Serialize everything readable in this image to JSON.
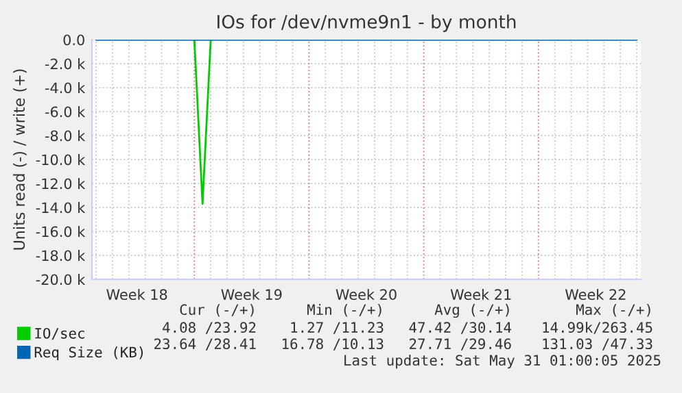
{
  "chart_data": {
    "type": "line",
    "title": "IOs for /dev/nvme9n1 - by month",
    "ylabel": "Units read (-) / write (+)",
    "categories": [
      null,
      null,
      null,
      null,
      null,
      "Week 18",
      null,
      null,
      null,
      null,
      null,
      null,
      null,
      null,
      null,
      null,
      null,
      null,
      null,
      "Week 19",
      null,
      null,
      null,
      null,
      null,
      null,
      null,
      null,
      null,
      null,
      null,
      null,
      null,
      "Week 20",
      null,
      null,
      null,
      null,
      null,
      null,
      null,
      null,
      null,
      null,
      null,
      null,
      null,
      "Week 21",
      null,
      null,
      null,
      null,
      null,
      null,
      null,
      null,
      null,
      null,
      null,
      null,
      null,
      "Week 22",
      null,
      null,
      null,
      null,
      null
    ],
    "ylim": [
      -20000,
      0
    ],
    "yticks": [
      {
        "value": -20000,
        "label": "-20.0 k"
      },
      {
        "value": -18000,
        "label": "-18.0 k"
      },
      {
        "value": -16000,
        "label": "-16.0 k"
      },
      {
        "value": -14000,
        "label": "-14.0 k"
      },
      {
        "value": -12000,
        "label": "-12.0 k"
      },
      {
        "value": -10000,
        "label": "-10.0 k"
      },
      {
        "value": -8000,
        "label": "-8.0 k"
      },
      {
        "value": -6000,
        "label": "-6.0 k"
      },
      {
        "value": -4000,
        "label": "-4.0 k"
      },
      {
        "value": -2000,
        "label": "-2.0 k"
      },
      {
        "value": 0,
        "label": "0.0"
      }
    ],
    "grid": true,
    "legend": "bottom left",
    "marker": "none",
    "line_style": "solid",
    "series": [
      {
        "name": "IO/sec",
        "color": "#00cc00",
        "values": [
          null,
          null,
          null,
          null,
          null,
          null,
          null,
          null,
          null,
          null,
          null,
          null,
          0,
          -13700,
          0,
          null,
          null,
          null,
          null,
          null,
          null,
          null,
          null,
          null,
          null,
          null,
          null,
          null,
          null,
          null,
          null,
          null,
          null,
          null,
          null,
          null,
          null,
          null,
          null,
          null,
          null,
          null,
          null,
          null,
          null,
          null,
          null,
          null,
          null,
          null,
          null,
          null,
          null,
          null,
          null,
          null,
          null,
          null,
          null,
          null,
          null,
          null,
          null,
          null,
          null,
          null,
          null
        ]
      },
      {
        "name": "Req Size (KB)",
        "color": "#0066b3",
        "values": [
          0,
          0,
          0,
          0,
          0,
          0,
          0,
          0,
          0,
          0,
          0,
          0,
          0,
          0,
          0,
          0,
          0,
          0,
          0,
          0,
          0,
          0,
          0,
          0,
          0,
          0,
          0,
          0,
          0,
          0,
          0,
          0,
          0,
          0,
          0,
          0,
          0,
          0,
          0,
          0,
          0,
          0,
          0,
          0,
          0,
          0,
          0,
          0,
          0,
          0,
          0,
          0,
          0,
          0,
          0,
          0,
          0,
          0,
          0,
          0,
          0,
          0,
          0,
          0,
          0,
          0,
          0
        ]
      }
    ],
    "annotations": [
      "Cur (-/+)",
      "Min (-/+)",
      "Avg (-/+)",
      "Max (-/+)",
      "4.08 /23.92",
      "1.27 /11.23",
      "47.42 /30.14",
      "14.99k/263.45",
      "23.64 /28.41",
      "16.78 /10.13",
      "27.71 /29.46",
      "131.03 /47.33",
      "Last update: Sat May 31 01:00:05 2025"
    ]
  }
}
